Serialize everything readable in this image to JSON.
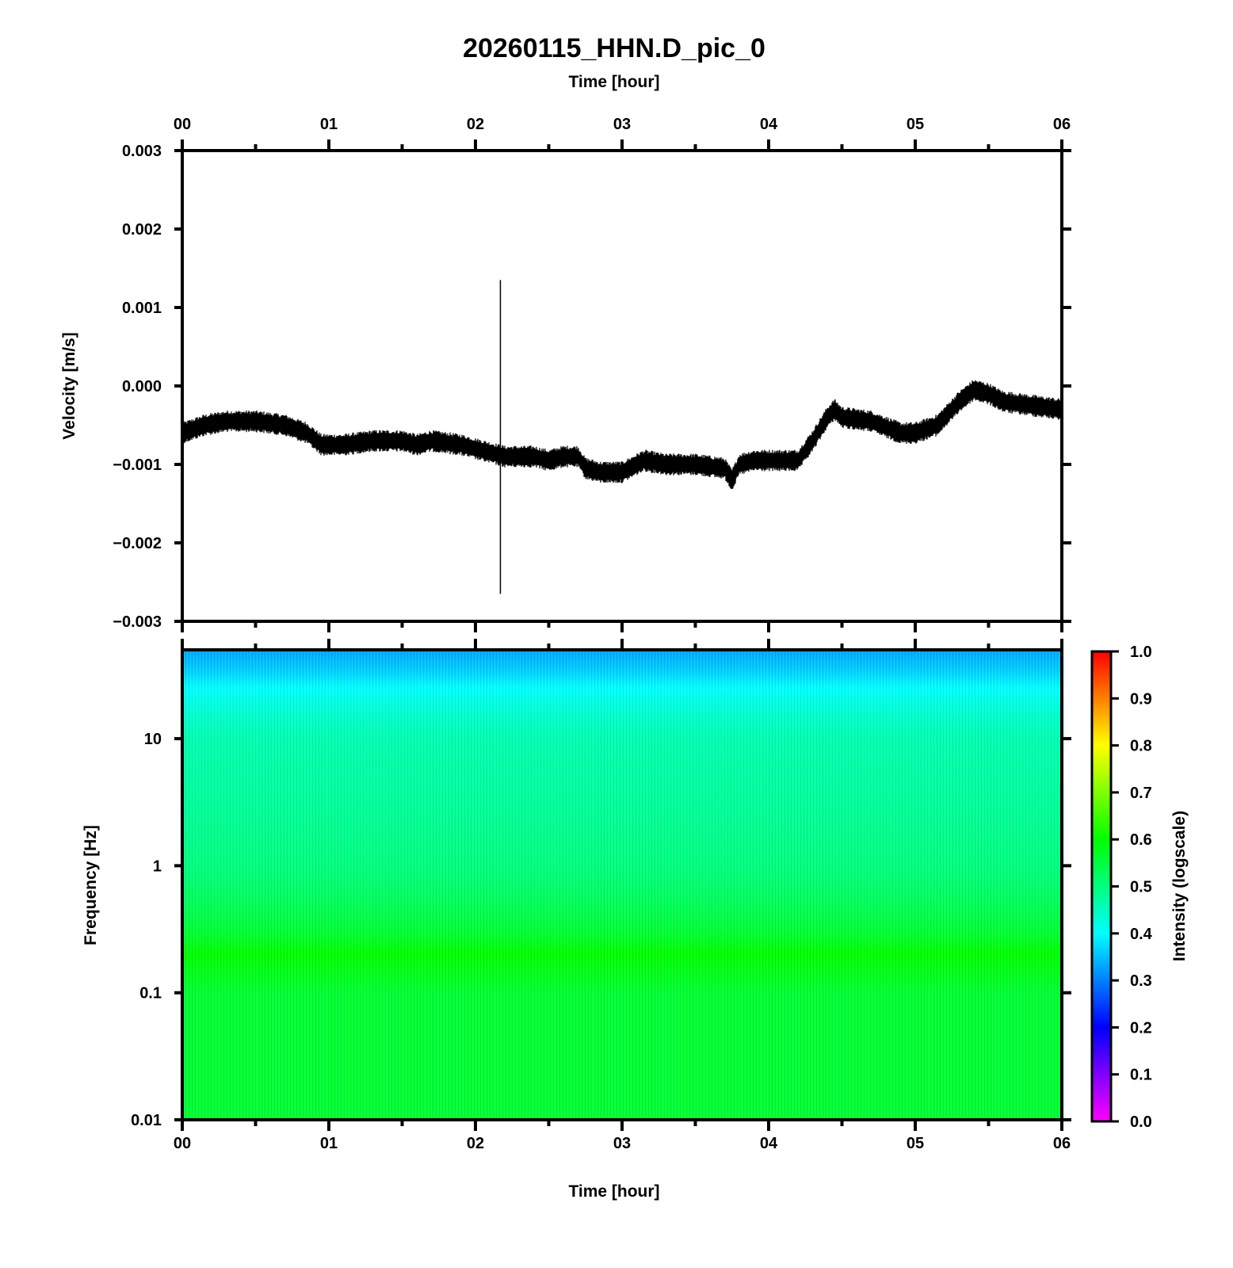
{
  "chart_data": [
    {
      "type": "line",
      "title": "20260115_HHN.D_pic_0",
      "xlabel": "Time [hour]",
      "ylabel": "Velocity [m/s]",
      "xlim": [
        0,
        6
      ],
      "ylim": [
        -0.003,
        0.003
      ],
      "x_ticks": [
        "00",
        "01",
        "02",
        "03",
        "04",
        "05",
        "06"
      ],
      "y_ticks": [
        "0.003",
        "0.002",
        "0.001",
        "0.000",
        "−0.001",
        "−0.002",
        "−0.003"
      ],
      "y_tick_values": [
        0.003,
        0.002,
        0.001,
        0.0,
        -0.001,
        -0.002,
        -0.003
      ],
      "series": [
        {
          "x": [
            0.0,
            0.15,
            0.3,
            0.5,
            0.7,
            0.85,
            0.95,
            1.1,
            1.3,
            1.5,
            1.6,
            1.7,
            1.9,
            2.1,
            2.2,
            2.4,
            2.5,
            2.6,
            2.7,
            2.75,
            2.85,
            3.0,
            3.15,
            3.3,
            3.5,
            3.7,
            3.75,
            3.8,
            3.9,
            4.0,
            4.2,
            4.3,
            4.4,
            4.45,
            4.5,
            4.7,
            4.9,
            5.0,
            5.15,
            5.3,
            5.4,
            5.5,
            5.6,
            5.8,
            6.0
          ],
          "y": [
            -0.0006,
            -0.0005,
            -0.00045,
            -0.00045,
            -0.0005,
            -0.0006,
            -0.00075,
            -0.00075,
            -0.0007,
            -0.0007,
            -0.00075,
            -0.0007,
            -0.00075,
            -0.00085,
            -0.0009,
            -0.0009,
            -0.00095,
            -0.0009,
            -0.0009,
            -0.00105,
            -0.0011,
            -0.0011,
            -0.00095,
            -0.001,
            -0.001,
            -0.00105,
            -0.0012,
            -0.001,
            -0.00095,
            -0.00095,
            -0.00095,
            -0.0007,
            -0.0004,
            -0.0003,
            -0.0004,
            -0.00045,
            -0.0006,
            -0.0006,
            -0.0005,
            -0.0002,
            -5e-05,
            -0.0001,
            -0.0002,
            -0.00025,
            -0.0003
          ]
        }
      ],
      "spike": {
        "x": 2.17,
        "ymin": -0.00265,
        "ymax": 0.00135
      }
    },
    {
      "type": "heatmap",
      "xlabel": "Time [hour]",
      "ylabel": "Frequency [Hz]",
      "xlim": [
        0,
        6
      ],
      "ylim": [
        0.01,
        50
      ],
      "y_scale": "log",
      "x_ticks": [
        "00",
        "01",
        "02",
        "03",
        "04",
        "05",
        "06"
      ],
      "y_ticks": [
        "10",
        "1",
        "0.1",
        "0.01"
      ],
      "y_tick_values": [
        10,
        1,
        0.1,
        0.01
      ],
      "colorbar_label": "Intensity (logscale)",
      "colorbar_range": [
        0.0,
        1.0
      ],
      "colorbar_ticks": [
        "1.0",
        "0.9",
        "0.8",
        "0.7",
        "0.6",
        "0.5",
        "0.4",
        "0.3",
        "0.2",
        "0.1",
        "0.0"
      ],
      "colorbar_tick_values": [
        1.0,
        0.9,
        0.8,
        0.7,
        0.6,
        0.5,
        0.4,
        0.3,
        0.2,
        0.1,
        0.0
      ],
      "colormap": [
        "#ff00ff",
        "#0000ff",
        "#00ffff",
        "#00ff00",
        "#ffff00",
        "#ff0000"
      ],
      "frequency_profile": {
        "freq": [
          50,
          35,
          25,
          15,
          10,
          3,
          1,
          0.5,
          0.3,
          0.2,
          0.1,
          0.03,
          0.01
        ],
        "intensity": [
          0.33,
          0.36,
          0.4,
          0.44,
          0.46,
          0.48,
          0.5,
          0.53,
          0.56,
          0.6,
          0.56,
          0.56,
          0.56
        ]
      }
    }
  ]
}
